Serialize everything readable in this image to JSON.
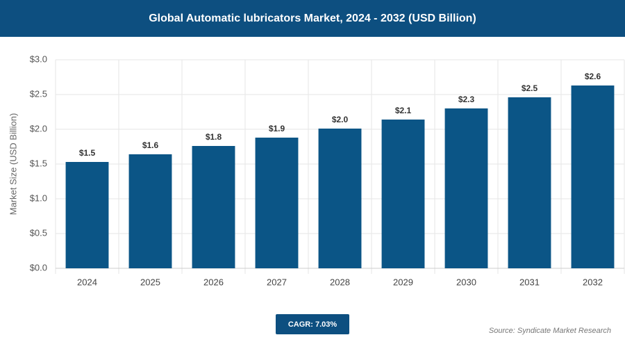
{
  "chart_data": {
    "type": "bar",
    "title": "Global Automatic lubricators Market, 2024 - 2032 (USD Billion)",
    "y_label": "Market Size (USD Billion)",
    "categories": [
      "2024",
      "2025",
      "2026",
      "2027",
      "2028",
      "2029",
      "2030",
      "2031",
      "2032"
    ],
    "values": [
      1.53,
      1.64,
      1.76,
      1.88,
      2.01,
      2.14,
      2.3,
      2.46,
      2.63
    ],
    "value_labels": [
      "$1.5",
      "$1.6",
      "$1.8",
      "$1.9",
      "$2.0",
      "$2.1",
      "$2.3",
      "$2.5",
      "$2.6"
    ],
    "color": "#0b5586",
    "ylim": [
      0,
      3
    ],
    "yticks": [
      {
        "value": 0,
        "label": "$0.0"
      },
      {
        "value": 0.5,
        "label": "$0.5"
      },
      {
        "value": 1,
        "label": "$1.0"
      },
      {
        "value": 1.5,
        "label": "$1.5"
      },
      {
        "value": 2,
        "label": "$2.0"
      },
      {
        "value": 2.5,
        "label": "$2.5"
      },
      {
        "value": 3,
        "label": "$3.0"
      }
    ],
    "grid": true,
    "annotation": "CAGR: 7.03%",
    "source": "Source: Syndicate Market Research"
  }
}
